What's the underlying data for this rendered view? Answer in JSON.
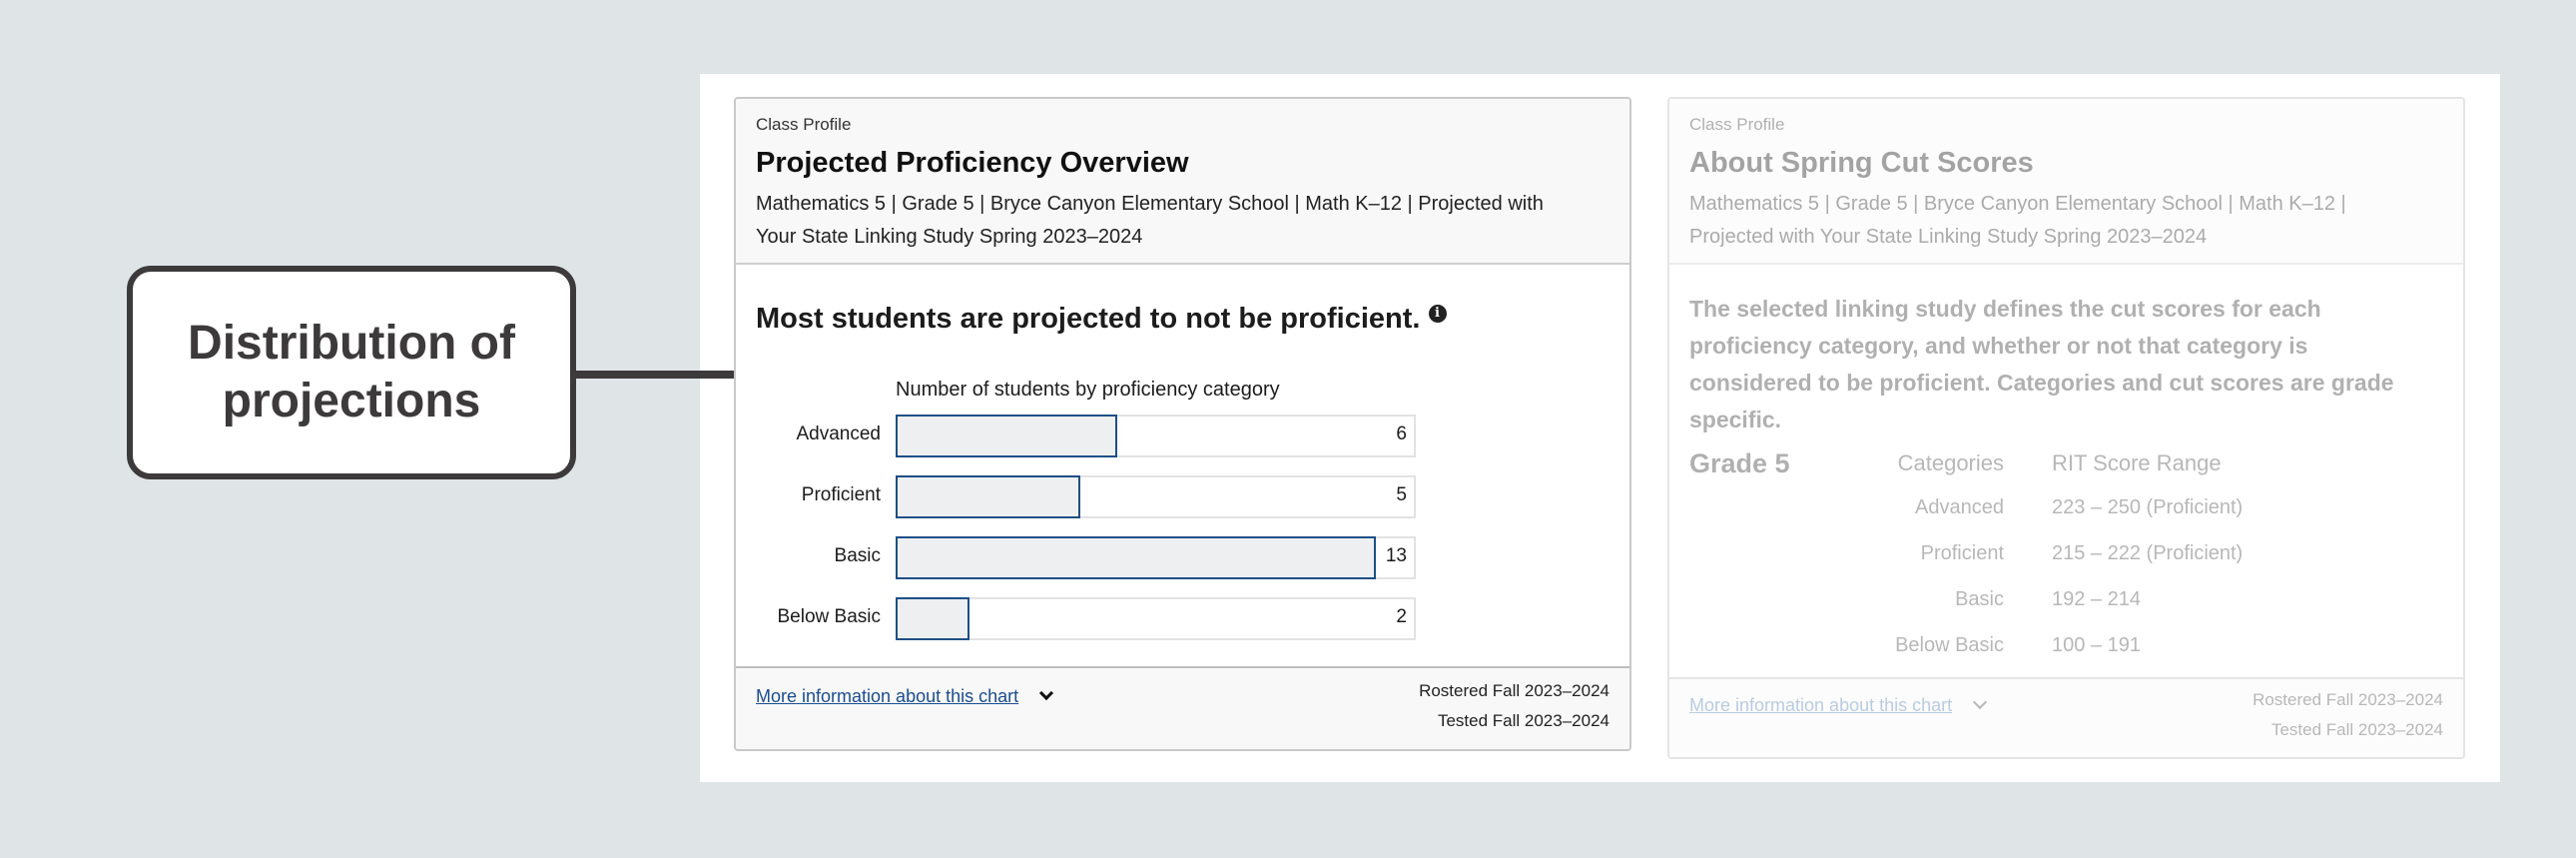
{
  "callout": {
    "text": "Distribution of projections"
  },
  "left_card": {
    "eyebrow": "Class Profile",
    "title": "Projected Proficiency Overview",
    "subtitle_line1": "Mathematics 5 | Grade 5 | Bryce Canyon Elementary School | Math K–12 | Projected with",
    "subtitle_line2": "Your State Linking Study Spring 2023–2024",
    "headline": "Most students are projected to not be proficient.",
    "info_icon": "info-circle-icon",
    "footer": {
      "link": "More information about this chart",
      "rostered": "Rostered Fall 2023–2024",
      "tested": "Tested Fall 2023–2024"
    }
  },
  "chart_data": {
    "type": "bar",
    "orientation": "horizontal",
    "title": "Number of students by proficiency category",
    "categories": [
      "Advanced",
      "Proficient",
      "Basic",
      "Below Basic"
    ],
    "values": [
      6,
      5,
      13,
      2
    ],
    "labels": [
      "6",
      "5",
      "13",
      "2"
    ],
    "colors": {
      "fill": "#eeeff1",
      "border": "#1d4f86"
    }
  },
  "right_card": {
    "eyebrow": "Class Profile",
    "title": "About Spring Cut Scores",
    "subtitle_line1": "Mathematics 5 | Grade 5 | Bryce Canyon Elementary School | Math K–12 |",
    "subtitle_line2": "Projected with Your State Linking Study Spring 2023–2024",
    "body": "The selected linking study defines the cut scores for each proficiency category, and whether or not that category is considered to be proficient. Categories and cut scores are grade specific.",
    "grade": "Grade 5",
    "col_categories": "Categories",
    "col_range": "RIT Score Range",
    "rows": [
      {
        "category": "Advanced",
        "range": "223 – 250 (Proficient)"
      },
      {
        "category": "Proficient",
        "range": "215 – 222 (Proficient)"
      },
      {
        "category": "Basic",
        "range": "192 – 214"
      },
      {
        "category": "Below Basic",
        "range": "100 – 191"
      }
    ],
    "footer": {
      "link": "More information about this chart",
      "rostered": "Rostered Fall 2023–2024",
      "tested": "Tested Fall 2023–2024"
    }
  }
}
